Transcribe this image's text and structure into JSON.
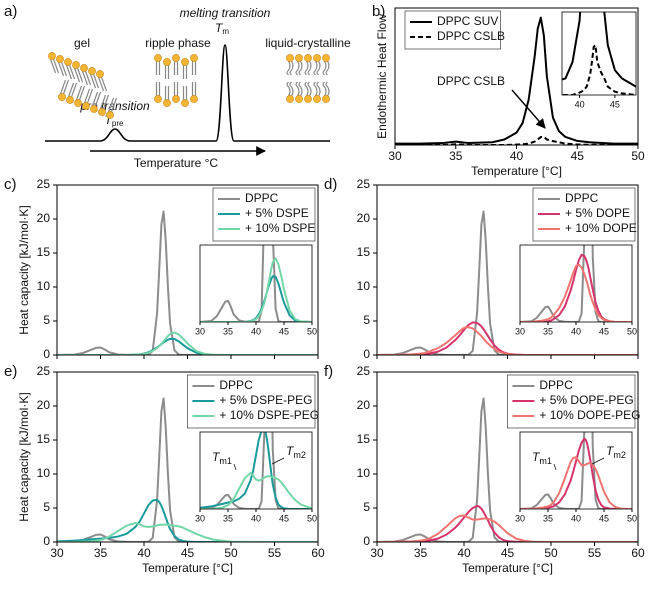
{
  "schematic": {
    "panel_label": "a)",
    "gel": "gel",
    "ripple": "ripple phase",
    "liquid": "liquid-crystalline",
    "pre": "pre transition",
    "tpre": {
      "symbol": "T",
      "subscript": "pre"
    },
    "melting": "melting transition",
    "tm": {
      "symbol": "T",
      "subscript": "m"
    },
    "xlabel": "Temperature °C"
  },
  "chart_data": [
    {
      "type": "line",
      "panel_label": "b)",
      "x": [
        30,
        32,
        34,
        35,
        36,
        38,
        39,
        40,
        40.5,
        41,
        41.5,
        41.75,
        42,
        42.25,
        42.5,
        43,
        43.5,
        44,
        45,
        46,
        48,
        50
      ],
      "series": [
        {
          "name": "DPPC SUV",
          "color": "#000000",
          "values": [
            0.01,
            0.01,
            0.015,
            0.025,
            0.015,
            0.02,
            0.04,
            0.09,
            0.16,
            0.33,
            0.65,
            0.85,
            0.93,
            0.8,
            0.5,
            0.2,
            0.1,
            0.06,
            0.03,
            0.02,
            0.01,
            0.01
          ]
        },
        {
          "name": "DPPC CSLB",
          "color": "#000000",
          "dash": true,
          "values": [
            0,
            0,
            0,
            0.005,
            0,
            0,
            0,
            0.003,
            0.005,
            0.01,
            0.025,
            0.04,
            0.058,
            0.06,
            0.04,
            0.028,
            0.02,
            0.01,
            0.004,
            0.002,
            0,
            0
          ]
        }
      ],
      "xlim": [
        30,
        50
      ],
      "xticks": [
        30,
        35,
        40,
        45,
        50
      ],
      "ylim": [
        0,
        1
      ],
      "xlabel": "Temperature [°C]",
      "ylabel": "Endothermic Heat Flow",
      "legend": "upper left",
      "inset": {
        "xlim": [
          37.5,
          48
        ],
        "xticks": [
          40,
          45
        ],
        "ylim": [
          0,
          0.1
        ]
      },
      "annotations": [
        {
          "text": "DPPC CSLB"
        }
      ]
    },
    {
      "type": "line",
      "panel_label": "c)",
      "x": [
        30,
        32,
        33,
        34,
        34.5,
        35,
        35.5,
        36,
        37,
        38,
        39,
        39.5,
        40,
        40.5,
        41,
        41.5,
        41.75,
        42,
        42.25,
        42.5,
        42.75,
        43,
        43.5,
        44,
        44.5,
        45,
        46,
        47,
        48,
        50,
        55,
        60
      ],
      "series": [
        {
          "name": "DPPC",
          "color": "#8c8c8c",
          "values": [
            0,
            0.05,
            0.3,
            0.8,
            1.05,
            1.1,
            0.8,
            0.4,
            0.08,
            0.02,
            0,
            0,
            0.01,
            0.02,
            0.6,
            6.1,
            12.5,
            19.2,
            21.1,
            16.8,
            10,
            4.6,
            0.7,
            0.05,
            0,
            0,
            0,
            0,
            0,
            0,
            0,
            0
          ]
        },
        {
          "name": "+ 5% DSPE",
          "color": "#1a9a9a",
          "values": [
            0,
            0,
            0,
            0,
            0,
            0,
            0,
            0,
            0,
            0,
            0.05,
            0.1,
            0.2,
            0.4,
            0.7,
            1.1,
            1.35,
            1.6,
            1.85,
            2.05,
            2.25,
            2.38,
            2.35,
            2,
            1.5,
            1,
            0.35,
            0.08,
            0.02,
            0,
            0,
            0
          ]
        },
        {
          "name": "+ 10% DSPE",
          "color": "#73d6a8",
          "values": [
            0,
            0,
            0,
            0,
            0,
            0,
            0,
            0,
            0,
            0,
            0.03,
            0.08,
            0.15,
            0.3,
            0.6,
            1,
            1.3,
            1.65,
            2,
            2.4,
            2.8,
            3.1,
            3.3,
            3,
            2.4,
            1.7,
            0.6,
            0.15,
            0.03,
            0,
            0,
            0
          ]
        }
      ],
      "xlim": [
        30,
        60
      ],
      "xticks": [
        30,
        35,
        40,
        45,
        50,
        55,
        60
      ],
      "xtick_labels": false,
      "ylim": [
        0,
        25
      ],
      "yticks": [
        0,
        5,
        10,
        15,
        20,
        25
      ],
      "ylabel": "Heat capacity [kJ/mol·K]",
      "legend": "upper right",
      "inset": {
        "xlim": [
          30,
          50
        ],
        "xticks": [
          30,
          35,
          40,
          45,
          50
        ],
        "ylim": [
          0,
          4
        ]
      }
    },
    {
      "type": "line",
      "panel_label": "d)",
      "x": [
        30,
        32,
        33,
        34,
        34.5,
        35,
        35.5,
        36,
        37,
        38,
        39,
        39.5,
        40,
        40.5,
        41,
        41.5,
        41.75,
        42,
        42.25,
        42.5,
        42.75,
        43,
        43.5,
        44,
        44.5,
        45,
        46,
        47,
        48,
        50,
        55,
        60
      ],
      "series": [
        {
          "name": "DPPC",
          "color": "#8c8c8c",
          "values": [
            0,
            0.05,
            0.3,
            0.8,
            1.05,
            1.1,
            0.8,
            0.4,
            0.08,
            0.02,
            0,
            0,
            0.01,
            0.02,
            0.6,
            6.1,
            12.5,
            19.2,
            21.1,
            16.8,
            10,
            4.6,
            0.7,
            0.05,
            0,
            0,
            0,
            0,
            0,
            0,
            0,
            0
          ]
        },
        {
          "name": "+ 5% DOPE",
          "color": "#d6336c",
          "values": [
            0,
            0,
            0,
            0,
            0,
            0.05,
            0.1,
            0.2,
            0.5,
            1.1,
            2.2,
            2.9,
            3.7,
            4.4,
            4.8,
            4.7,
            4.5,
            4.2,
            3.8,
            3.3,
            2.8,
            2.3,
            1.4,
            0.8,
            0.4,
            0.2,
            0.05,
            0,
            0,
            0,
            0,
            0
          ]
        },
        {
          "name": "+ 10% DOPE",
          "color": "#f07470",
          "values": [
            0,
            0,
            0.05,
            0.1,
            0.15,
            0.2,
            0.3,
            0.5,
            1,
            1.8,
            2.9,
            3.5,
            4,
            4.1,
            3.9,
            3.4,
            3.1,
            2.8,
            2.4,
            2,
            1.7,
            1.4,
            0.9,
            0.5,
            0.3,
            0.15,
            0.05,
            0,
            0,
            0,
            0,
            0
          ]
        }
      ],
      "xlim": [
        30,
        60
      ],
      "xticks": [
        30,
        35,
        40,
        45,
        50,
        55,
        60
      ],
      "xtick_labels": false,
      "ylim": [
        0,
        25
      ],
      "yticks": [
        0,
        5,
        10,
        15,
        20,
        25
      ],
      "legend": "upper right",
      "inset": {
        "xlim": [
          30,
          50
        ],
        "xticks": [
          30,
          35,
          40,
          45,
          50
        ],
        "ylim": [
          0,
          5.5
        ]
      }
    },
    {
      "type": "line",
      "panel_label": "e)",
      "x": [
        30,
        32,
        33,
        34,
        34.5,
        35,
        35.5,
        36,
        37,
        38,
        39,
        39.5,
        40,
        40.5,
        41,
        41.5,
        41.75,
        42,
        42.25,
        42.5,
        42.75,
        43,
        43.5,
        44,
        44.5,
        45,
        46,
        47,
        48,
        50,
        55,
        60
      ],
      "series": [
        {
          "name": "DPPC",
          "color": "#8c8c8c",
          "values": [
            0,
            0.05,
            0.3,
            0.8,
            1.05,
            1.1,
            0.8,
            0.4,
            0.08,
            0.02,
            0,
            0,
            0.01,
            0.02,
            0.6,
            6.1,
            12.5,
            19.2,
            21.1,
            16.8,
            10,
            4.6,
            0.7,
            0.05,
            0,
            0,
            0,
            0,
            0,
            0,
            0,
            0
          ]
        },
        {
          "name": "+ 5% DSPE-PEG",
          "color": "#1a9a9a",
          "values": [
            0.1,
            0.2,
            0.3,
            0.4,
            0.45,
            0.5,
            0.55,
            0.6,
            0.8,
            1.2,
            2.2,
            3,
            4.2,
            5.4,
            6.1,
            6.2,
            5.9,
            5.3,
            4.5,
            3.6,
            2.7,
            1.9,
            0.9,
            0.35,
            0.15,
            0.05,
            0,
            0,
            0,
            0,
            0,
            0
          ]
        },
        {
          "name": "+ 10% DSPE-PEG",
          "color": "#73d6a8",
          "values": [
            0,
            0,
            0.05,
            0.1,
            0.2,
            0.3,
            0.5,
            0.8,
            1.6,
            2.4,
            2.8,
            2.6,
            2.3,
            2.2,
            2.3,
            2.45,
            2.5,
            2.55,
            2.55,
            2.55,
            2.5,
            2.5,
            2.4,
            2.3,
            2.1,
            1.8,
            1.2,
            0.7,
            0.35,
            0.05,
            0,
            0
          ]
        }
      ],
      "xlim": [
        30,
        60
      ],
      "xticks": [
        30,
        35,
        40,
        45,
        50,
        55,
        60
      ],
      "ylim": [
        0,
        25
      ],
      "yticks": [
        0,
        5,
        10,
        15,
        20,
        25
      ],
      "xlabel": "Temperature [°C]",
      "ylabel": "Heat capacity [kJ/mol·K]",
      "legend": "upper right",
      "inset": {
        "xlim": [
          30,
          50
        ],
        "xticks": [
          30,
          35,
          40,
          45,
          50
        ],
        "ylim": [
          0,
          6
        ]
      },
      "annotations": [
        {
          "symbol": "T",
          "subscript": "m1"
        },
        {
          "symbol": "T",
          "subscript": "m2"
        }
      ]
    },
    {
      "type": "line",
      "panel_label": "f)",
      "x": [
        30,
        32,
        33,
        34,
        34.5,
        35,
        35.5,
        36,
        37,
        38,
        39,
        39.5,
        40,
        40.5,
        41,
        41.5,
        41.75,
        42,
        42.25,
        42.5,
        42.75,
        43,
        43.5,
        44,
        44.5,
        45,
        46,
        47,
        48,
        50,
        55,
        60
      ],
      "series": [
        {
          "name": "DPPC",
          "color": "#8c8c8c",
          "values": [
            0,
            0.05,
            0.3,
            0.8,
            1.05,
            1.1,
            0.8,
            0.4,
            0.08,
            0.02,
            0,
            0,
            0.01,
            0.02,
            0.6,
            6.1,
            12.5,
            19.2,
            21.1,
            16.8,
            10,
            4.6,
            0.7,
            0.05,
            0,
            0,
            0,
            0,
            0,
            0,
            0,
            0
          ]
        },
        {
          "name": "+ 5% DOPE-PEG",
          "color": "#d6336c",
          "values": [
            0,
            0,
            0.02,
            0.05,
            0.08,
            0.1,
            0.15,
            0.2,
            0.5,
            1.1,
            2.1,
            2.8,
            3.6,
            4.4,
            5,
            5.3,
            5.2,
            4.9,
            4.4,
            3.8,
            3.2,
            2.5,
            1.4,
            0.7,
            0.3,
            0.12,
            0.03,
            0,
            0,
            0,
            0,
            0
          ]
        },
        {
          "name": "+ 10% DOPE-PEG",
          "color": "#f07470",
          "values": [
            0,
            0.02,
            0.05,
            0.1,
            0.15,
            0.2,
            0.3,
            0.5,
            1.2,
            2.3,
            3.5,
            3.85,
            3.9,
            3.6,
            3.3,
            3.3,
            3.35,
            3.4,
            3.45,
            3.45,
            3.4,
            3.3,
            3,
            2.5,
            1.9,
            1.3,
            0.5,
            0.15,
            0.03,
            0,
            0,
            0
          ]
        }
      ],
      "xlim": [
        30,
        60
      ],
      "xticks": [
        30,
        35,
        40,
        45,
        50,
        55,
        60
      ],
      "ylim": [
        0,
        25
      ],
      "yticks": [
        0,
        5,
        10,
        15,
        20,
        25
      ],
      "xlabel": "Temperature [°C]",
      "legend": "upper right",
      "inset": {
        "xlim": [
          30,
          50
        ],
        "xticks": [
          30,
          35,
          40,
          45,
          50
        ],
        "ylim": [
          0,
          5.8
        ]
      },
      "annotations": [
        {
          "symbol": "T",
          "subscript": "m1"
        },
        {
          "symbol": "T",
          "subscript": "m2"
        }
      ]
    }
  ]
}
